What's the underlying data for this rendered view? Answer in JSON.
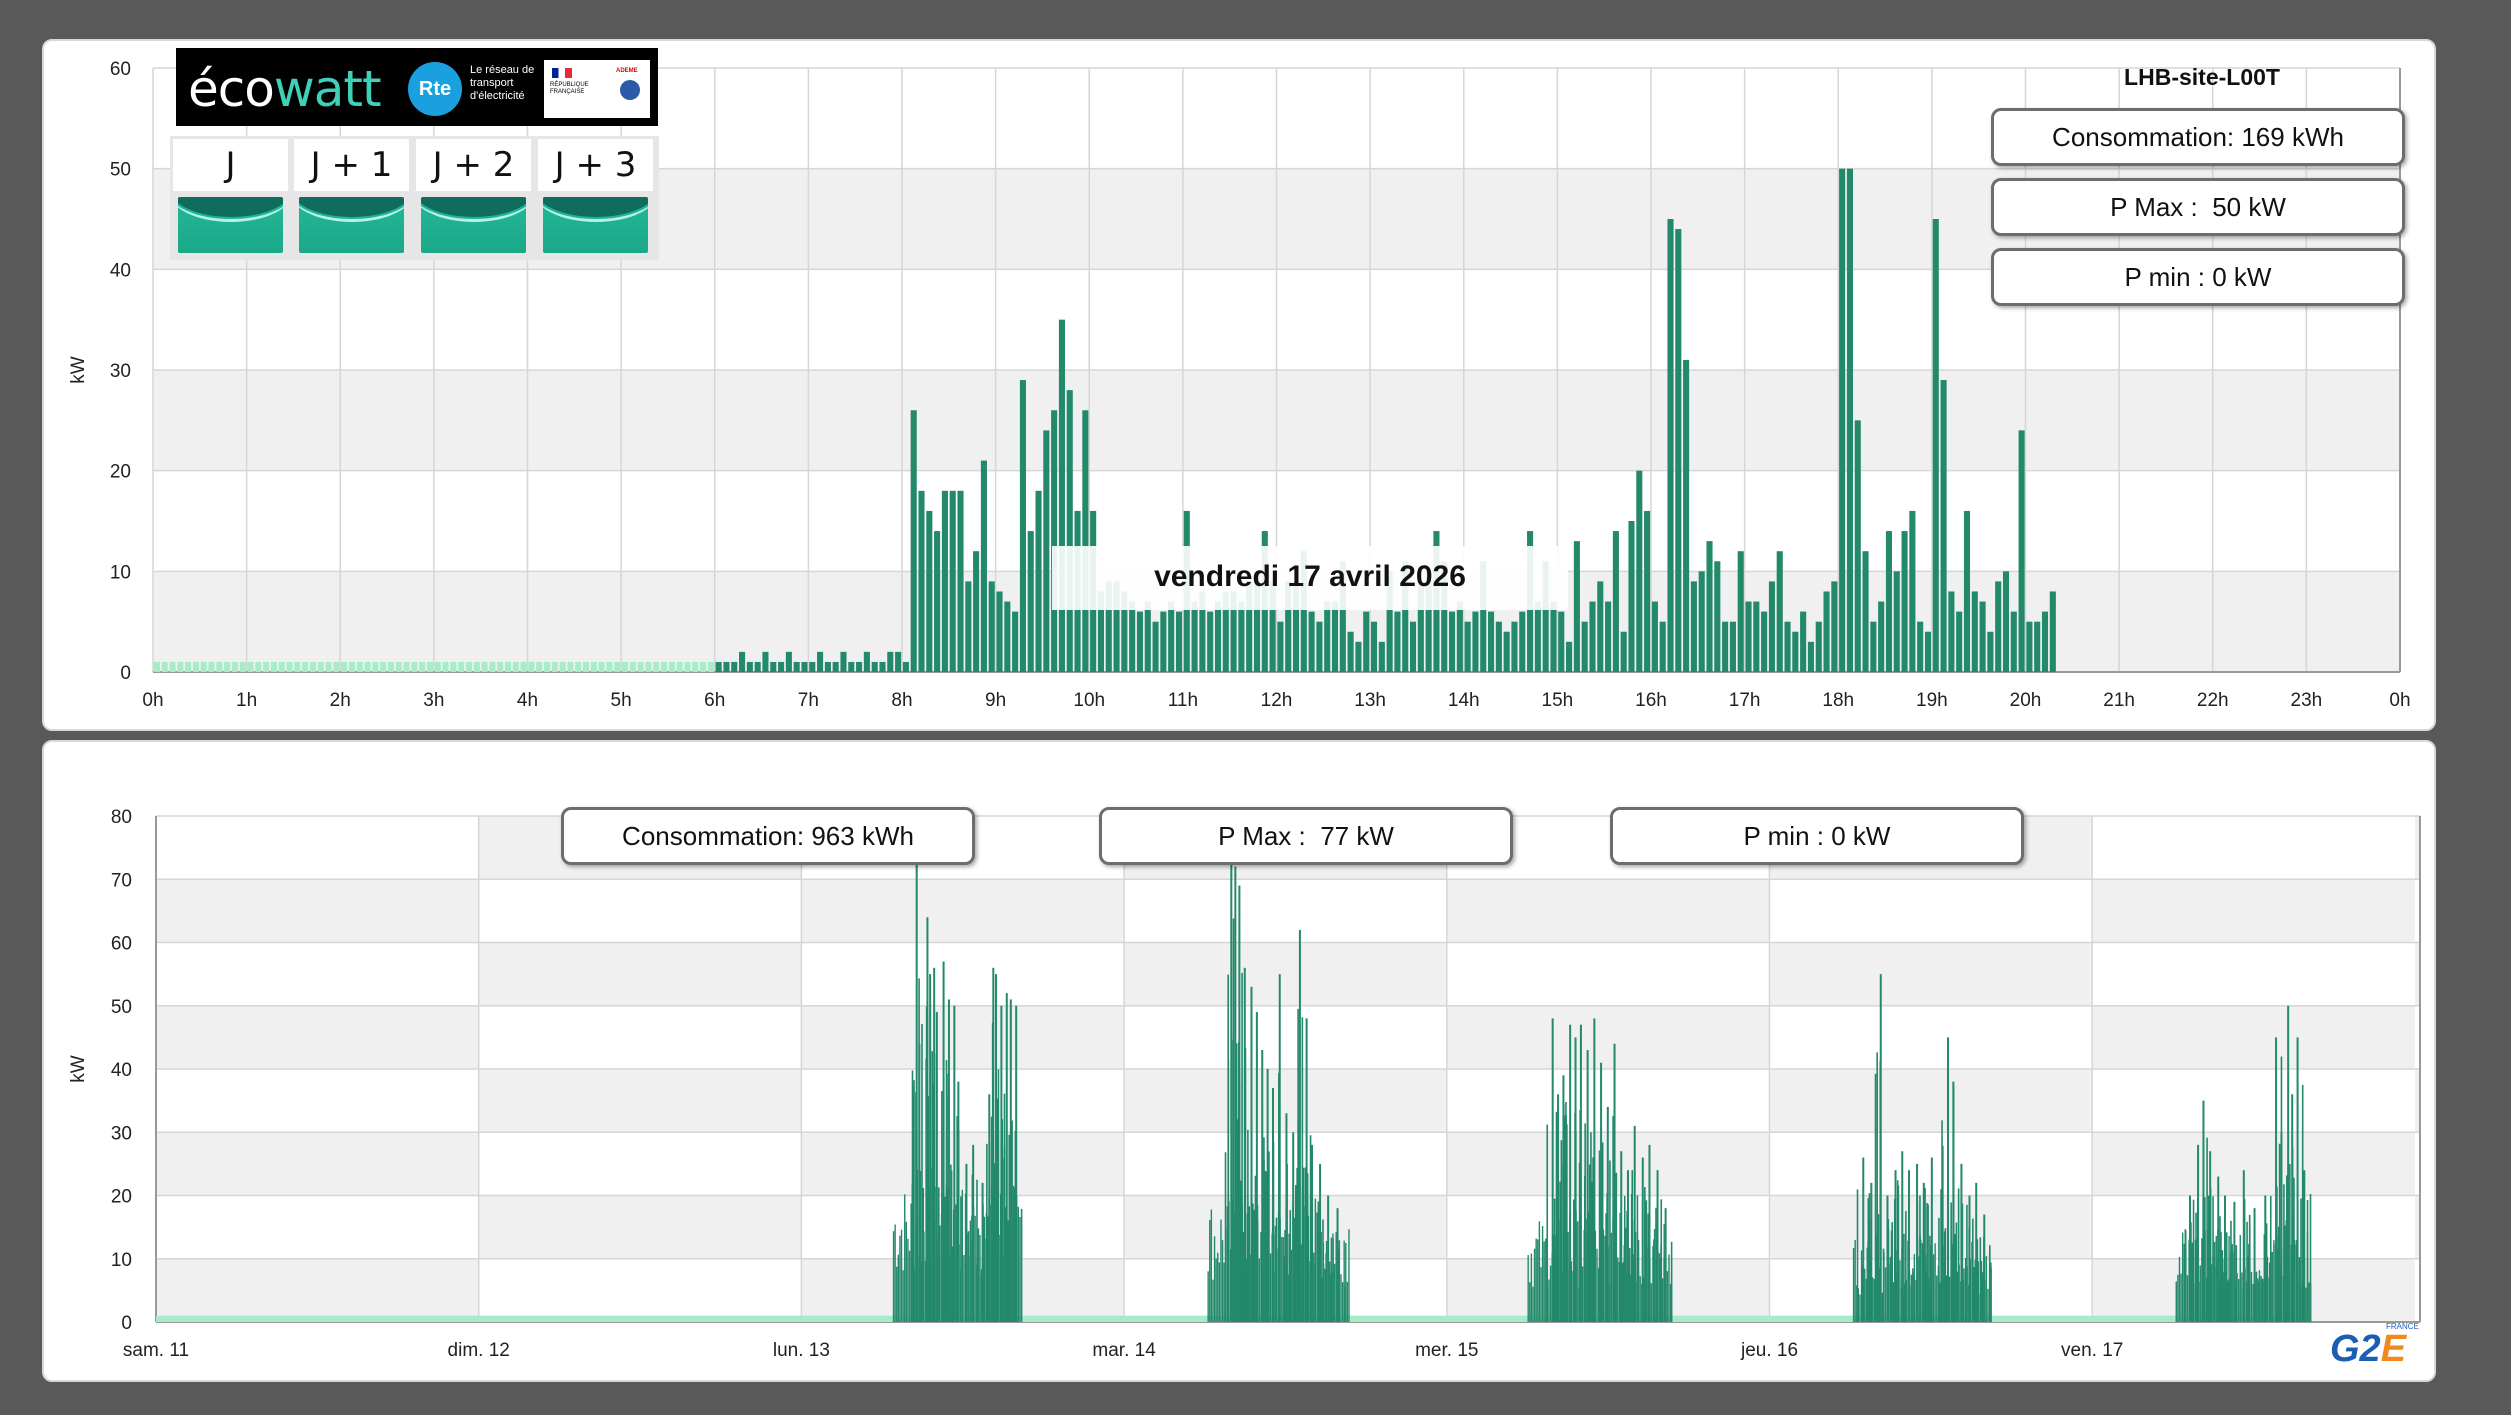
{
  "top_panel": {
    "site_title": "LHB-site-L00T",
    "consumption_label": "Consommation: 169 kWh",
    "pmax_label": "P Max :  50 kW",
    "pmin_label": "P min : 0 kW",
    "date_label": "vendredi 17 avril 2026"
  },
  "ecowatt": {
    "logo_eco": "éco",
    "logo_watt": "watt",
    "rte": "Rte",
    "rte_text": "Le réseau de transport d'électricité",
    "rf_text": "RÉPUBLIQUE FRANÇAISE",
    "ademe": "ADEME",
    "days": [
      "J",
      "J + 1",
      "J + 2",
      "J + 3"
    ],
    "colors": {
      "level_green": "#1aa888",
      "dark": "#0e6d5c"
    }
  },
  "bottom_panel": {
    "consumption_label": "Consommation: 963 kWh",
    "pmax_label": "P Max :  77 kW",
    "pmin_label": "P min : 0 kW"
  },
  "brand": {
    "name": "G2",
    "accent": "E",
    "country": "FRANCE"
  },
  "chart_data": [
    {
      "type": "bar",
      "ylabel": "kW",
      "ylim": [
        0,
        60
      ],
      "yticks": [
        0,
        10,
        20,
        30,
        40,
        50,
        60
      ],
      "xticks": [
        "0h",
        "1h",
        "2h",
        "3h",
        "4h",
        "5h",
        "6h",
        "7h",
        "8h",
        "9h",
        "10h",
        "11h",
        "12h",
        "13h",
        "14h",
        "15h",
        "16h",
        "17h",
        "18h",
        "19h",
        "20h",
        "21h",
        "22h",
        "23h",
        "0h"
      ],
      "interval_minutes": 5,
      "colors": {
        "bar": "#23896b",
        "estimated": "#a6ecc8",
        "band": "#f0f0f0",
        "grid": "#d6d6d6"
      },
      "values_before_6h": 1,
      "values_from_6h": [
        1,
        1,
        1,
        2,
        1,
        1,
        2,
        1,
        1,
        2,
        1,
        1,
        1,
        2,
        1,
        1,
        2,
        1,
        1,
        2,
        1,
        1,
        2,
        2,
        1,
        26,
        18,
        16,
        14,
        18,
        18,
        18,
        9,
        12,
        21,
        9,
        8,
        7,
        6,
        29,
        14,
        18,
        24,
        26,
        35,
        28,
        16,
        26,
        16,
        8,
        9,
        9,
        8,
        7,
        6,
        7,
        5,
        6,
        7,
        6,
        16,
        7,
        8,
        6,
        7,
        8,
        8,
        7,
        9,
        10,
        14,
        9,
        5,
        9,
        9,
        12,
        6,
        5,
        7,
        7,
        11,
        4,
        3,
        6,
        5,
        3,
        10,
        6,
        11,
        5,
        9,
        10,
        14,
        11,
        6,
        7,
        5,
        6,
        11,
        6,
        5,
        4,
        5,
        6,
        14,
        7,
        11,
        7,
        6,
        3,
        13,
        5,
        7,
        9,
        7,
        14,
        4,
        15,
        20,
        16,
        7,
        5,
        45,
        44,
        31,
        9,
        10,
        13,
        11,
        5,
        5,
        12,
        7,
        7,
        6,
        9,
        12,
        5,
        4,
        6,
        3,
        5,
        8,
        9,
        50,
        50,
        25,
        12,
        5,
        7,
        14,
        10,
        14,
        16,
        5,
        4,
        45,
        29,
        8,
        6,
        16,
        8,
        7,
        4,
        9,
        10,
        6,
        24,
        5,
        5,
        6,
        8
      ]
    },
    {
      "type": "bar",
      "ylabel": "kW",
      "ylim": [
        0,
        80
      ],
      "yticks": [
        0,
        10,
        20,
        30,
        40,
        50,
        60,
        70,
        80
      ],
      "xticks": [
        "sam. 11",
        "dim. 12",
        "lun. 13",
        "mar. 14",
        "mer. 15",
        "jeu. 16",
        "ven. 17"
      ],
      "colors": {
        "bar": "#23896b",
        "estimated": "#a6ecc8",
        "band": "#f0f0f0",
        "grid": "#d6d6d6"
      },
      "baseline_kw": 1,
      "days": [
        {
          "day": "sam. 11",
          "active": false,
          "peaks": []
        },
        {
          "day": "dim. 12",
          "active": false,
          "peaks": []
        },
        {
          "day": "lun. 13",
          "active": true,
          "start_h": 6.8,
          "end_h": 16.3,
          "level": 20,
          "peaks": [
            [
              8.5,
              77
            ],
            [
              8.7,
              44
            ],
            [
              9.3,
              64
            ],
            [
              9.5,
              55
            ],
            [
              9.8,
              56
            ],
            [
              10.0,
              49
            ],
            [
              10.5,
              57
            ],
            [
              10.9,
              51
            ],
            [
              11.3,
              50
            ],
            [
              11.6,
              38
            ],
            [
              12.2,
              25
            ],
            [
              12.7,
              28
            ],
            [
              13.4,
              22
            ],
            [
              13.9,
              36
            ],
            [
              14.2,
              56
            ],
            [
              14.4,
              55
            ],
            [
              14.8,
              50
            ],
            [
              15.2,
              52
            ],
            [
              15.5,
              51
            ],
            [
              15.9,
              50
            ]
          ]
        },
        {
          "day": "mar. 14",
          "active": true,
          "start_h": 6.2,
          "end_h": 16.8,
          "level": 18,
          "peaks": [
            [
              7.9,
              77
            ],
            [
              8.2,
              72
            ],
            [
              8.5,
              69
            ],
            [
              8.9,
              56
            ],
            [
              9.4,
              53
            ],
            [
              9.8,
              49
            ],
            [
              10.2,
              43
            ],
            [
              10.6,
              40
            ],
            [
              11.0,
              37
            ],
            [
              11.5,
              55
            ],
            [
              12.0,
              33
            ],
            [
              12.5,
              30
            ],
            [
              13.0,
              62
            ],
            [
              13.5,
              48
            ],
            [
              13.9,
              28
            ],
            [
              14.5,
              25
            ],
            [
              15.1,
              20
            ],
            [
              15.8,
              18
            ]
          ]
        },
        {
          "day": "mer. 15",
          "active": true,
          "start_h": 6.0,
          "end_h": 16.7,
          "level": 15,
          "peaks": [
            [
              7.8,
              48
            ],
            [
              8.2,
              36
            ],
            [
              8.6,
              39
            ],
            [
              9.1,
              47
            ],
            [
              9.5,
              45
            ],
            [
              9.9,
              47
            ],
            [
              10.4,
              43
            ],
            [
              10.9,
              48
            ],
            [
              11.4,
              41
            ],
            [
              11.9,
              34
            ],
            [
              12.4,
              44
            ],
            [
              12.9,
              27
            ],
            [
              13.4,
              24
            ],
            [
              13.9,
              31
            ],
            [
              14.5,
              26
            ],
            [
              15.0,
              28
            ],
            [
              15.6,
              24
            ],
            [
              16.2,
              18
            ]
          ]
        },
        {
          "day": "jeu. 16",
          "active": true,
          "start_h": 6.2,
          "end_h": 16.6,
          "level": 12,
          "peaks": [
            [
              6.9,
              26
            ],
            [
              7.5,
              22
            ],
            [
              8.2,
              55
            ],
            [
              8.7,
              20
            ],
            [
              9.3,
              24
            ],
            [
              9.8,
              27
            ],
            [
              10.3,
              24
            ],
            [
              10.9,
              25
            ],
            [
              11.4,
              22
            ],
            [
              12.0,
              26
            ],
            [
              12.7,
              21
            ],
            [
              13.2,
              45
            ],
            [
              13.6,
              38
            ],
            [
              14.2,
              25
            ],
            [
              14.8,
              20
            ],
            [
              15.3,
              22
            ],
            [
              15.9,
              17
            ]
          ]
        },
        {
          "day": "ven. 17",
          "active": true,
          "start_h": 6.2,
          "end_h": 16.3,
          "level": 14,
          "peaks": [
            [
              7.2,
              20
            ],
            [
              7.8,
              28
            ],
            [
              8.2,
              35
            ],
            [
              8.7,
              27
            ],
            [
              9.3,
              23
            ],
            [
              9.8,
              20
            ],
            [
              10.5,
              19
            ],
            [
              11.2,
              24
            ],
            [
              12.0,
              18
            ],
            [
              12.8,
              20
            ],
            [
              13.6,
              45
            ],
            [
              14.0,
              30
            ],
            [
              14.5,
              50
            ],
            [
              14.8,
              36
            ],
            [
              15.2,
              45
            ],
            [
              15.7,
              24
            ]
          ]
        }
      ]
    }
  ]
}
